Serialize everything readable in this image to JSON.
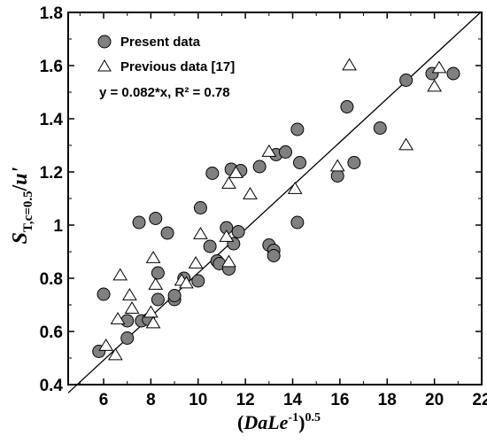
{
  "chart_data": {
    "type": "scatter",
    "xlim": [
      4.5,
      22
    ],
    "ylim": [
      0.4,
      1.8
    ],
    "x_ticks": [
      "6",
      "8",
      "10",
      "12",
      "14",
      "16",
      "18",
      "20",
      "22"
    ],
    "y_ticks": [
      "0.4",
      "0.6",
      "0.8",
      "1",
      "1.2",
      "1.4",
      "1.6",
      "1.8"
    ],
    "xlabel": {
      "open": "(",
      "main": "DaLe",
      "sup1": "-1",
      "close": ")",
      "sup2": "0.5"
    },
    "ylabel": {
      "main": "S",
      "sub": "T,c=0.5",
      "slash": "/",
      "u": "u'"
    },
    "fit": {
      "text": "y = 0.082*x, R² = 0.78",
      "slope": 0.082
    },
    "series": [
      {
        "name": "Present data",
        "marker": "circle",
        "color": "#808080",
        "points": [
          [
            5.8,
            0.525
          ],
          [
            6.0,
            0.74
          ],
          [
            7.0,
            0.64
          ],
          [
            7.0,
            0.575
          ],
          [
            7.5,
            1.01
          ],
          [
            7.6,
            0.64
          ],
          [
            7.9,
            0.645
          ],
          [
            8.2,
            1.025
          ],
          [
            8.3,
            0.82
          ],
          [
            8.3,
            0.72
          ],
          [
            8.7,
            0.97
          ],
          [
            9.0,
            0.72
          ],
          [
            9.0,
            0.735
          ],
          [
            9.4,
            0.8
          ],
          [
            10.0,
            0.79
          ],
          [
            10.1,
            1.065
          ],
          [
            10.5,
            0.92
          ],
          [
            10.8,
            0.865
          ],
          [
            10.9,
            0.855
          ],
          [
            11.2,
            0.99
          ],
          [
            11.3,
            0.835
          ],
          [
            11.4,
            1.21
          ],
          [
            11.5,
            0.93
          ],
          [
            11.7,
            0.975
          ],
          [
            11.8,
            1.205
          ],
          [
            10.6,
            1.195
          ],
          [
            12.6,
            1.22
          ],
          [
            13.0,
            0.925
          ],
          [
            13.2,
            0.905
          ],
          [
            13.2,
            0.885
          ],
          [
            13.3,
            1.265
          ],
          [
            13.7,
            1.275
          ],
          [
            14.2,
            1.01
          ],
          [
            14.2,
            1.36
          ],
          [
            14.3,
            1.235
          ],
          [
            15.9,
            1.185
          ],
          [
            16.3,
            1.445
          ],
          [
            16.6,
            1.235
          ],
          [
            17.7,
            1.365
          ],
          [
            18.8,
            1.545
          ],
          [
            19.9,
            1.57
          ],
          [
            20.8,
            1.57
          ]
        ]
      },
      {
        "name": "Previous data [17]",
        "marker": "triangle",
        "color": "#ffffff",
        "points": [
          [
            6.1,
            0.545
          ],
          [
            6.5,
            0.51
          ],
          [
            6.6,
            0.645
          ],
          [
            6.7,
            0.81
          ],
          [
            7.1,
            0.735
          ],
          [
            7.2,
            0.685
          ],
          [
            8.0,
            0.67
          ],
          [
            8.1,
            0.875
          ],
          [
            8.1,
            0.63
          ],
          [
            8.2,
            0.775
          ],
          [
            9.3,
            0.79
          ],
          [
            9.5,
            0.78
          ],
          [
            9.9,
            0.855
          ],
          [
            10.1,
            0.965
          ],
          [
            11.2,
            0.955
          ],
          [
            11.3,
            0.86
          ],
          [
            11.3,
            1.155
          ],
          [
            11.6,
            1.195
          ],
          [
            12.2,
            1.115
          ],
          [
            13.0,
            1.275
          ],
          [
            14.1,
            1.135
          ],
          [
            15.9,
            1.22
          ],
          [
            16.4,
            1.6
          ],
          [
            18.8,
            1.3
          ],
          [
            20.0,
            1.52
          ],
          [
            20.2,
            1.59
          ]
        ]
      }
    ]
  }
}
